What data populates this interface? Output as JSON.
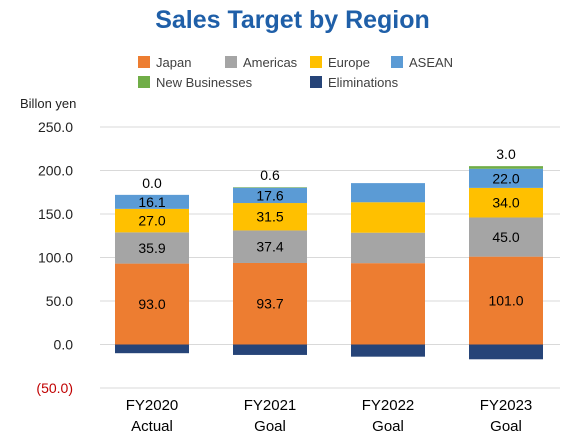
{
  "chart_data": {
    "type": "bar",
    "stacked": true,
    "title": "Sales Target by Region",
    "ylabel": "Billon yen",
    "ylim": [
      -50,
      250
    ],
    "yticks": [
      "250.0",
      "200.0",
      "150.0",
      "100.0",
      "50.0",
      "0.0",
      "(50.0)"
    ],
    "categories": [
      "FY2020\nActual",
      "FY2021\nGoal",
      "FY2022\nGoal",
      "FY2023\nGoal"
    ],
    "category_lines": [
      [
        "FY2020",
        "Actual"
      ],
      [
        "FY2021",
        "Goal"
      ],
      [
        "FY2022",
        "Goal"
      ],
      [
        "FY2023",
        "Goal"
      ]
    ],
    "series": [
      {
        "name": "Japan",
        "color": "#ed7d31",
        "values": [
          93.0,
          93.7,
          93.5,
          101.0
        ],
        "labels": [
          "93.0",
          "93.7",
          "",
          "101.0"
        ],
        "label_color": "#000000"
      },
      {
        "name": "Americas",
        "color": "#a5a5a5",
        "values": [
          35.9,
          37.4,
          35.0,
          45.0
        ],
        "labels": [
          "35.9",
          "37.4",
          "",
          "45.0"
        ],
        "label_color": "#000000"
      },
      {
        "name": "Europe",
        "color": "#ffc000",
        "values": [
          27.0,
          31.5,
          35.0,
          34.0
        ],
        "labels": [
          "27.0",
          "31.5",
          "",
          "34.0"
        ],
        "label_color": "#000000"
      },
      {
        "name": "ASEAN",
        "color": "#5b9bd5",
        "values": [
          16.1,
          17.6,
          22.0,
          22.0
        ],
        "labels": [
          "16.1",
          "17.6",
          "",
          "22.0"
        ],
        "label_color": "#000000"
      },
      {
        "name": "New Businesses",
        "color": "#70ad47",
        "values": [
          0.0,
          0.6,
          0.0,
          3.0
        ],
        "labels": [
          "0.0",
          "0.6",
          "",
          "3.0"
        ],
        "label_above": true
      },
      {
        "name": "Eliminations",
        "color": "#264478",
        "values": [
          -10.0,
          -12.0,
          -14.0,
          -17.0
        ],
        "labels": [
          "",
          "",
          "",
          ""
        ]
      }
    ],
    "grid": true,
    "legend_position": "top",
    "colors": {
      "title": "#1f5fa8",
      "negative_tick": "#c00000",
      "grid": "#d9d9d9"
    }
  }
}
